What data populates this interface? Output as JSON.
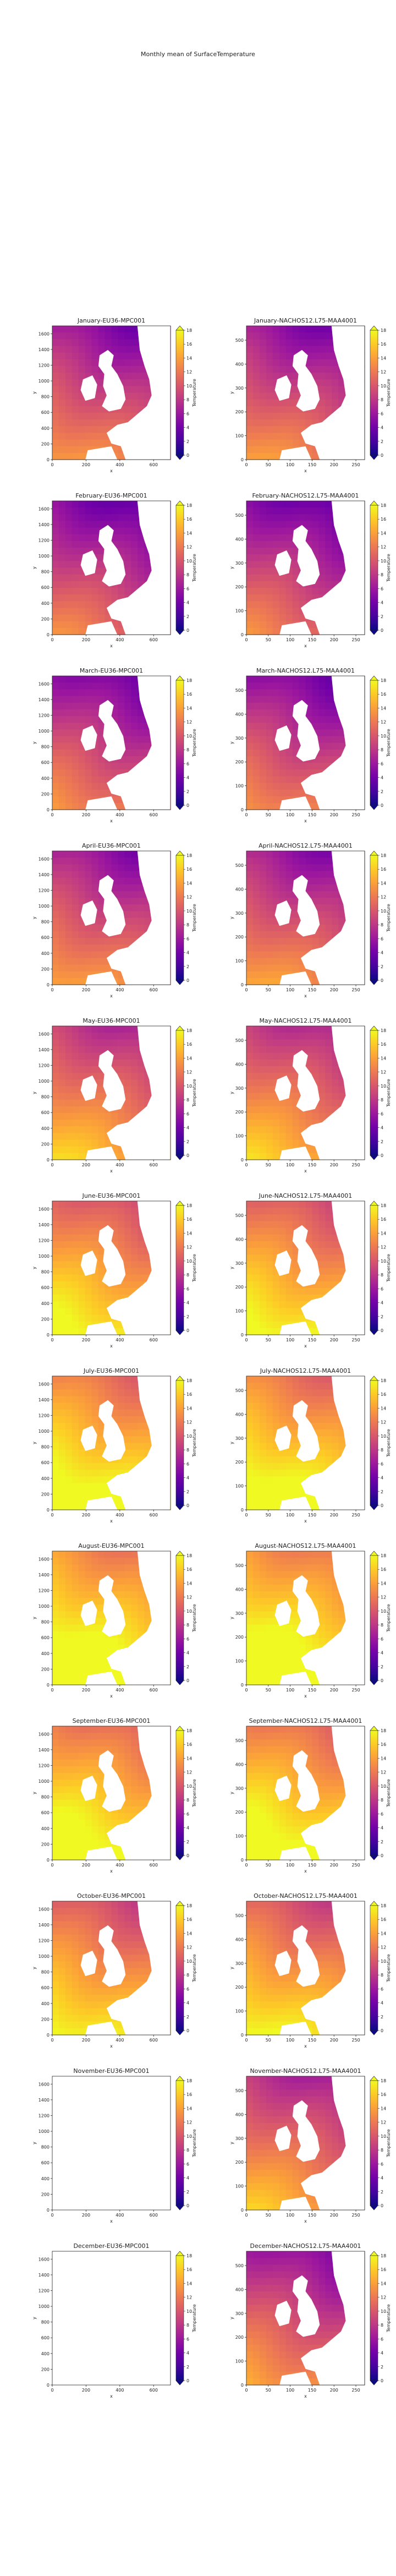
{
  "figure_title": "Monthly mean of SurfaceTemperature",
  "colorbar_label": "Temperature",
  "colorbar_ticks": [
    0,
    2,
    4,
    6,
    8,
    10,
    12,
    14,
    16,
    18
  ],
  "colormap": {
    "name": "plasma",
    "stops": [
      "#0d0887",
      "#46039f",
      "#7201a8",
      "#9c179e",
      "#bd3786",
      "#d8576b",
      "#ed7953",
      "#fb9f3a",
      "#fdca26",
      "#f0f921"
    ]
  },
  "no_data_color": "#ffffff",
  "chart_data": [
    {
      "type": "heatmap",
      "title": "January-EU36-MPC001",
      "xlabel": "x",
      "ylabel": "y",
      "xticks": [
        0,
        200,
        400,
        600
      ],
      "yticks": [
        0,
        200,
        400,
        600,
        800,
        1000,
        1200,
        1400,
        1600
      ],
      "xlim": [
        0,
        700
      ],
      "ylim": [
        0,
        1700
      ],
      "value_range": [
        0,
        18
      ],
      "mean_temperature": 9,
      "has_data": true
    },
    {
      "type": "heatmap",
      "title": "January-NACHOS12.L75-MAA4001",
      "xlabel": "x",
      "ylabel": "y",
      "xticks": [
        0,
        50,
        100,
        150,
        200,
        250
      ],
      "yticks": [
        0,
        100,
        200,
        300,
        400,
        500
      ],
      "xlim": [
        0,
        270
      ],
      "ylim": [
        0,
        560
      ],
      "value_range": [
        0,
        18
      ],
      "mean_temperature": 9,
      "has_data": true
    },
    {
      "type": "heatmap",
      "title": "February-EU36-MPC001",
      "xlabel": "x",
      "ylabel": "y",
      "xticks": [
        0,
        200,
        400,
        600
      ],
      "yticks": [
        0,
        200,
        400,
        600,
        800,
        1000,
        1200,
        1400,
        1600
      ],
      "xlim": [
        0,
        700
      ],
      "ylim": [
        0,
        1700
      ],
      "value_range": [
        0,
        18
      ],
      "mean_temperature": 8,
      "has_data": true
    },
    {
      "type": "heatmap",
      "title": "February-NACHOS12.L75-MAA4001",
      "xlabel": "x",
      "ylabel": "y",
      "xticks": [
        0,
        50,
        100,
        150,
        200,
        250
      ],
      "yticks": [
        0,
        100,
        200,
        300,
        400,
        500
      ],
      "xlim": [
        0,
        270
      ],
      "ylim": [
        0,
        560
      ],
      "value_range": [
        0,
        18
      ],
      "mean_temperature": 8,
      "has_data": true
    },
    {
      "type": "heatmap",
      "title": "March-EU36-MPC001",
      "xlabel": "x",
      "ylabel": "y",
      "xticks": [
        0,
        200,
        400,
        600
      ],
      "yticks": [
        0,
        200,
        400,
        600,
        800,
        1000,
        1200,
        1400,
        1600
      ],
      "xlim": [
        0,
        700
      ],
      "ylim": [
        0,
        1700
      ],
      "value_range": [
        0,
        18
      ],
      "mean_temperature": 8.5,
      "has_data": true
    },
    {
      "type": "heatmap",
      "title": "March-NACHOS12.L75-MAA4001",
      "xlabel": "x",
      "ylabel": "y",
      "xticks": [
        0,
        50,
        100,
        150,
        200,
        250
      ],
      "yticks": [
        0,
        100,
        200,
        300,
        400,
        500
      ],
      "xlim": [
        0,
        270
      ],
      "ylim": [
        0,
        560
      ],
      "value_range": [
        0,
        18
      ],
      "mean_temperature": 8.5,
      "has_data": true
    },
    {
      "type": "heatmap",
      "title": "April-EU36-MPC001",
      "xlabel": "x",
      "ylabel": "y",
      "xticks": [
        0,
        200,
        400,
        600
      ],
      "yticks": [
        0,
        200,
        400,
        600,
        800,
        1000,
        1200,
        1400,
        1600
      ],
      "xlim": [
        0,
        700
      ],
      "ylim": [
        0,
        1700
      ],
      "value_range": [
        0,
        18
      ],
      "mean_temperature": 9.5,
      "has_data": true
    },
    {
      "type": "heatmap",
      "title": "April-NACHOS12.L75-MAA4001",
      "xlabel": "x",
      "ylabel": "y",
      "xticks": [
        0,
        50,
        100,
        150,
        200,
        250
      ],
      "yticks": [
        0,
        100,
        200,
        300,
        400,
        500
      ],
      "xlim": [
        0,
        270
      ],
      "ylim": [
        0,
        560
      ],
      "value_range": [
        0,
        18
      ],
      "mean_temperature": 9.5,
      "has_data": true
    },
    {
      "type": "heatmap",
      "title": "May-EU36-MPC001",
      "xlabel": "x",
      "ylabel": "y",
      "xticks": [
        0,
        200,
        400,
        600
      ],
      "yticks": [
        0,
        200,
        400,
        600,
        800,
        1000,
        1200,
        1400,
        1600
      ],
      "xlim": [
        0,
        700
      ],
      "ylim": [
        0,
        1700
      ],
      "value_range": [
        0,
        18
      ],
      "mean_temperature": 11.5,
      "has_data": true
    },
    {
      "type": "heatmap",
      "title": "May-NACHOS12.L75-MAA4001",
      "xlabel": "x",
      "ylabel": "y",
      "xticks": [
        0,
        50,
        100,
        150,
        200,
        250
      ],
      "yticks": [
        0,
        100,
        200,
        300,
        400,
        500
      ],
      "xlim": [
        0,
        270
      ],
      "ylim": [
        0,
        560
      ],
      "value_range": [
        0,
        18
      ],
      "mean_temperature": 11.5,
      "has_data": true
    },
    {
      "type": "heatmap",
      "title": "June-EU36-MPC001",
      "xlabel": "x",
      "ylabel": "y",
      "xticks": [
        0,
        200,
        400,
        600
      ],
      "yticks": [
        0,
        200,
        400,
        600,
        800,
        1000,
        1200,
        1400,
        1600
      ],
      "xlim": [
        0,
        700
      ],
      "ylim": [
        0,
        1700
      ],
      "value_range": [
        0,
        18
      ],
      "mean_temperature": 14,
      "has_data": true
    },
    {
      "type": "heatmap",
      "title": "June-NACHOS12.L75-MAA4001",
      "xlabel": "x",
      "ylabel": "y",
      "xticks": [
        0,
        50,
        100,
        150,
        200,
        250
      ],
      "yticks": [
        0,
        100,
        200,
        300,
        400,
        500
      ],
      "xlim": [
        0,
        270
      ],
      "ylim": [
        0,
        560
      ],
      "value_range": [
        0,
        18
      ],
      "mean_temperature": 14,
      "has_data": true
    },
    {
      "type": "heatmap",
      "title": "July-EU36-MPC001",
      "xlabel": "x",
      "ylabel": "y",
      "xticks": [
        0,
        200,
        400,
        600
      ],
      "yticks": [
        0,
        200,
        400,
        600,
        800,
        1000,
        1200,
        1400,
        1600
      ],
      "xlim": [
        0,
        700
      ],
      "ylim": [
        0,
        1700
      ],
      "value_range": [
        0,
        18
      ],
      "mean_temperature": 15.5,
      "has_data": true
    },
    {
      "type": "heatmap",
      "title": "July-NACHOS12.L75-MAA4001",
      "xlabel": "x",
      "ylabel": "y",
      "xticks": [
        0,
        50,
        100,
        150,
        200,
        250
      ],
      "yticks": [
        0,
        100,
        200,
        300,
        400,
        500
      ],
      "xlim": [
        0,
        270
      ],
      "ylim": [
        0,
        560
      ],
      "value_range": [
        0,
        18
      ],
      "mean_temperature": 15.5,
      "has_data": true
    },
    {
      "type": "heatmap",
      "title": "August-EU36-MPC001",
      "xlabel": "x",
      "ylabel": "y",
      "xticks": [
        0,
        200,
        400,
        600
      ],
      "yticks": [
        0,
        200,
        400,
        600,
        800,
        1000,
        1200,
        1400,
        1600
      ],
      "xlim": [
        0,
        700
      ],
      "ylim": [
        0,
        1700
      ],
      "value_range": [
        0,
        18
      ],
      "mean_temperature": 16.5,
      "has_data": true
    },
    {
      "type": "heatmap",
      "title": "August-NACHOS12.L75-MAA4001",
      "xlabel": "x",
      "ylabel": "y",
      "xticks": [
        0,
        50,
        100,
        150,
        200,
        250
      ],
      "yticks": [
        0,
        100,
        200,
        300,
        400,
        500
      ],
      "xlim": [
        0,
        270
      ],
      "ylim": [
        0,
        560
      ],
      "value_range": [
        0,
        18
      ],
      "mean_temperature": 16.5,
      "has_data": true
    },
    {
      "type": "heatmap",
      "title": "September-EU36-MPC001",
      "xlabel": "x",
      "ylabel": "y",
      "xticks": [
        0,
        200,
        400,
        600
      ],
      "yticks": [
        0,
        200,
        400,
        600,
        800,
        1000,
        1200,
        1400,
        1600
      ],
      "xlim": [
        0,
        700
      ],
      "ylim": [
        0,
        1700
      ],
      "value_range": [
        0,
        18
      ],
      "mean_temperature": 15.5,
      "has_data": true
    },
    {
      "type": "heatmap",
      "title": "September-NACHOS12.L75-MAA4001",
      "xlabel": "x",
      "ylabel": "y",
      "xticks": [
        0,
        50,
        100,
        150,
        200,
        250
      ],
      "yticks": [
        0,
        100,
        200,
        300,
        400,
        500
      ],
      "xlim": [
        0,
        270
      ],
      "ylim": [
        0,
        560
      ],
      "value_range": [
        0,
        18
      ],
      "mean_temperature": 15.5,
      "has_data": true
    },
    {
      "type": "heatmap",
      "title": "October-EU36-MPC001",
      "xlabel": "x",
      "ylabel": "y",
      "xticks": [
        0,
        200,
        400,
        600
      ],
      "yticks": [
        0,
        200,
        400,
        600,
        800,
        1000,
        1200,
        1400,
        1600
      ],
      "xlim": [
        0,
        700
      ],
      "ylim": [
        0,
        1700
      ],
      "value_range": [
        0,
        18
      ],
      "mean_temperature": 13.5,
      "has_data": true
    },
    {
      "type": "heatmap",
      "title": "October-NACHOS12.L75-MAA4001",
      "xlabel": "x",
      "ylabel": "y",
      "xticks": [
        0,
        50,
        100,
        150,
        200,
        250
      ],
      "yticks": [
        0,
        100,
        200,
        300,
        400,
        500
      ],
      "xlim": [
        0,
        270
      ],
      "ylim": [
        0,
        560
      ],
      "value_range": [
        0,
        18
      ],
      "mean_temperature": 13.5,
      "has_data": true
    },
    {
      "type": "heatmap",
      "title": "November-EU36-MPC001",
      "xlabel": "x",
      "ylabel": "y",
      "xticks": [
        0,
        200,
        400,
        600
      ],
      "yticks": [
        0,
        200,
        400,
        600,
        800,
        1000,
        1200,
        1400,
        1600
      ],
      "xlim": [
        0,
        700
      ],
      "ylim": [
        0,
        1700
      ],
      "value_range": [
        0,
        18
      ],
      "mean_temperature": null,
      "has_data": false
    },
    {
      "type": "heatmap",
      "title": "November-NACHOS12.L75-MAA4001",
      "xlabel": "x",
      "ylabel": "y",
      "xticks": [
        0,
        50,
        100,
        150,
        200,
        250
      ],
      "yticks": [
        0,
        100,
        200,
        300,
        400,
        500
      ],
      "xlim": [
        0,
        270
      ],
      "ylim": [
        0,
        560
      ],
      "value_range": [
        0,
        18
      ],
      "mean_temperature": 11,
      "has_data": true
    },
    {
      "type": "heatmap",
      "title": "December-EU36-MPC001",
      "xlabel": "x",
      "ylabel": "y",
      "xticks": [
        0,
        200,
        400,
        600
      ],
      "yticks": [
        0,
        200,
        400,
        600,
        800,
        1000,
        1200,
        1400,
        1600
      ],
      "xlim": [
        0,
        700
      ],
      "ylim": [
        0,
        1700
      ],
      "value_range": [
        0,
        18
      ],
      "mean_temperature": null,
      "has_data": false
    },
    {
      "type": "heatmap",
      "title": "December-NACHOS12.L75-MAA4001",
      "xlabel": "x",
      "ylabel": "y",
      "xticks": [
        0,
        50,
        100,
        150,
        200,
        250
      ],
      "yticks": [
        0,
        100,
        200,
        300,
        400,
        500
      ],
      "xlim": [
        0,
        270
      ],
      "ylim": [
        0,
        560
      ],
      "value_range": [
        0,
        18
      ],
      "mean_temperature": 9.5,
      "has_data": true
    }
  ]
}
